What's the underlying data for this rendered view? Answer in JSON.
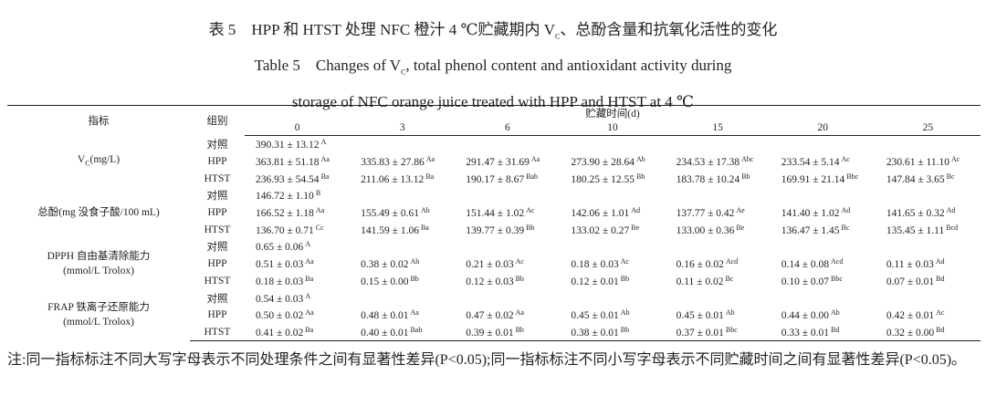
{
  "title": {
    "cn": [
      "表 5　HPP 和 HTST 处理 NFC 橙汁 4 ℃贮藏期内 V",
      "C",
      "、总酚含量和抗氧化活性的变化"
    ],
    "en1": [
      "Table 5　Changes of V",
      "C",
      ", total phenol content and antioxidant activity during"
    ],
    "en2": "storage of NFC orange juice treated with HPP and HTST at 4 ℃"
  },
  "table": {
    "header": {
      "indicator": "指标",
      "group": "组别",
      "time": "贮藏时间(d)",
      "days": [
        "0",
        "3",
        "6",
        "10",
        "15",
        "20",
        "25"
      ]
    },
    "indicators": [
      {
        "main": "V",
        "sub": "C",
        "unit": "(mg/L)",
        "rows": [
          {
            "group": "对照",
            "cells": [
              {
                "text": "390.31 ± 13.12",
                "sup": "A"
              }
            ]
          },
          {
            "group": "HPP",
            "cells": [
              {
                "text": "363.81 ± 51.18",
                "sup": "Aa"
              },
              {
                "text": "335.83 ± 27.86",
                "sup": "Aa"
              },
              {
                "text": "291.47 ± 31.69",
                "sup": "Aa"
              },
              {
                "text": "273.90 ± 28.64",
                "sup": "Ab"
              },
              {
                "text": "234.53 ± 17.38",
                "sup": "Abc"
              },
              {
                "text": "233.54 ± 5.14",
                "sup": "Ac"
              },
              {
                "text": "230.61 ± 11.10",
                "sup": "Ac"
              }
            ]
          },
          {
            "group": "HTST",
            "cells": [
              {
                "text": "236.93 ± 54.54",
                "sup": "Ba"
              },
              {
                "text": "211.06 ± 13.12",
                "sup": "Ba"
              },
              {
                "text": "190.17 ± 8.67",
                "sup": "Bab"
              },
              {
                "text": "180.25 ± 12.55",
                "sup": "Bb"
              },
              {
                "text": "183.78 ± 10.24",
                "sup": "Bb"
              },
              {
                "text": "169.91 ± 21.14",
                "sup": "Bbc"
              },
              {
                "text": "147.84 ± 3.65",
                "sup": "Bc"
              }
            ]
          }
        ]
      },
      {
        "main": "总酚(mg 没食子酸/100 mL)",
        "rows": [
          {
            "group": "对照",
            "cells": [
              {
                "text": "146.72 ± 1.10",
                "sup": "B"
              }
            ]
          },
          {
            "group": "HPP",
            "cells": [
              {
                "text": "166.52 ± 1.18",
                "sup": "Aa"
              },
              {
                "text": "155.49 ± 0.61",
                "sup": "Ab"
              },
              {
                "text": "151.44 ± 1.02",
                "sup": "Ac"
              },
              {
                "text": "142.06 ± 1.01",
                "sup": "Ad"
              },
              {
                "text": "137.77 ± 0.42",
                "sup": "Ae"
              },
              {
                "text": "141.40 ± 1.02",
                "sup": "Ad"
              },
              {
                "text": "141.65 ± 0.32",
                "sup": "Ad"
              }
            ]
          },
          {
            "group": "HTST",
            "cells": [
              {
                "text": "136.70 ± 0.71",
                "sup": "Cc"
              },
              {
                "text": "141.59 ± 1.06",
                "sup": "Ba"
              },
              {
                "text": "139.77 ± 0.39",
                "sup": "Bb"
              },
              {
                "text": "133.02 ± 0.27",
                "sup": "Be"
              },
              {
                "text": "133.00 ± 0.36",
                "sup": "Be"
              },
              {
                "text": "136.47 ± 1.45",
                "sup": "Bc"
              },
              {
                "text": "135.45 ± 1.11",
                "sup": "Bcd"
              }
            ]
          }
        ]
      },
      {
        "main": "DPPH 自由基清除能力",
        "unit": "(mmol/L Trolox)",
        "rows": [
          {
            "group": "对照",
            "cells": [
              {
                "text": "0.65 ± 0.06",
                "sup": "A"
              }
            ]
          },
          {
            "group": "HPP",
            "cells": [
              {
                "text": "0.51 ± 0.03",
                "sup": "Aa"
              },
              {
                "text": "0.38 ± 0.02",
                "sup": "Ab"
              },
              {
                "text": "0.21 ± 0.03",
                "sup": "Ac"
              },
              {
                "text": "0.18 ± 0.03",
                "sup": "Ac"
              },
              {
                "text": "0.16 ± 0.02",
                "sup": "Acd"
              },
              {
                "text": "0.14 ± 0.08",
                "sup": "Acd"
              },
              {
                "text": "0.11 ± 0.03",
                "sup": "Ad"
              }
            ]
          },
          {
            "group": "HTST",
            "cells": [
              {
                "text": "0.18 ± 0.03",
                "sup": "Ba"
              },
              {
                "text": "0.15 ± 0.00",
                "sup": "Bb"
              },
              {
                "text": "0.12 ± 0.03",
                "sup": "Bb"
              },
              {
                "text": "0.12 ± 0.01",
                "sup": "Bb"
              },
              {
                "text": "0.11 ± 0.02",
                "sup": "Bc"
              },
              {
                "text": "0.10 ± 0.07",
                "sup": "Bbc"
              },
              {
                "text": "0.07 ± 0.01",
                "sup": "Bd"
              }
            ]
          }
        ]
      },
      {
        "main": "FRAP 铁离子还原能力",
        "unit": "(mmol/L Trolox)",
        "rows": [
          {
            "group": "对照",
            "cells": [
              {
                "text": "0.54 ± 0.03",
                "sup": "A"
              }
            ]
          },
          {
            "group": "HPP",
            "cells": [
              {
                "text": "0.50 ± 0.02",
                "sup": "Aa"
              },
              {
                "text": "0.48 ± 0.01",
                "sup": "Aa"
              },
              {
                "text": "0.47 ± 0.02",
                "sup": "Aa"
              },
              {
                "text": "0.45 ± 0.01",
                "sup": "Ab"
              },
              {
                "text": "0.45 ± 0.01",
                "sup": "Ab"
              },
              {
                "text": "0.44 ± 0.00",
                "sup": "Ab"
              },
              {
                "text": "0.42 ± 0.01",
                "sup": "Ac"
              }
            ]
          },
          {
            "group": "HTST",
            "cells": [
              {
                "text": "0.41 ± 0.02",
                "sup": "Ba"
              },
              {
                "text": "0.40 ± 0.01",
                "sup": "Bab"
              },
              {
                "text": "0.39 ± 0.01",
                "sup": "Bb"
              },
              {
                "text": "0.38 ± 0.01",
                "sup": "Bb"
              },
              {
                "text": "0.37 ± 0.01",
                "sup": "Bbc"
              },
              {
                "text": "0.33 ± 0.01",
                "sup": "Bd"
              },
              {
                "text": "0.32 ± 0.00",
                "sup": "Bd"
              }
            ]
          }
        ]
      }
    ]
  },
  "note": "注:同一指标标注不同大写字母表示不同处理条件之间有显著性差异(P<0.05);同一指标标注不同小写字母表示不同贮藏时间之间有显著性差异(P<0.05)。"
}
